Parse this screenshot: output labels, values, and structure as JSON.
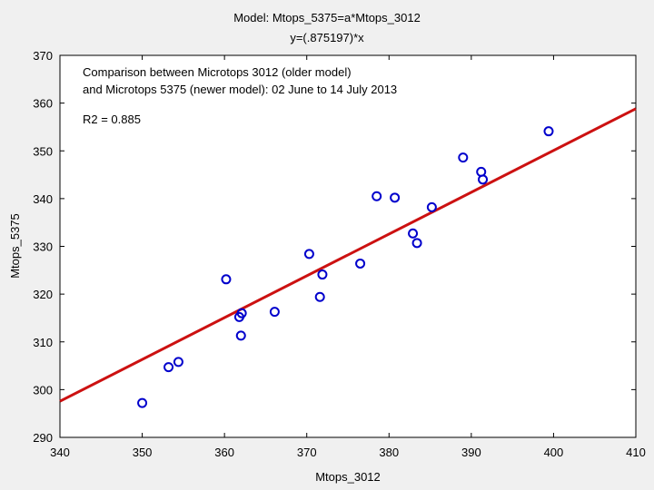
{
  "chart_data": {
    "type": "scatter",
    "title": "Model: Mtops_5375=a*Mtops_3012",
    "subtitle": "y=(.875197)*x",
    "xlabel": "Mtops_3012",
    "ylabel": "Mtops_5375",
    "xlim": [
      340,
      410
    ],
    "ylim": [
      290,
      370
    ],
    "xticks": [
      "340",
      "350",
      "360",
      "370",
      "380",
      "390",
      "400",
      "410"
    ],
    "yticks": [
      "290",
      "300",
      "310",
      "320",
      "330",
      "340",
      "350",
      "360",
      "370"
    ],
    "grid": false,
    "annotation_lines": [
      "Comparison between Microtops 3012 (older model)",
      "and Microtops 5375 (newer model): 02 June to 14 July 2013"
    ],
    "r2_label": "R2 = 0.885",
    "slope": 0.875197,
    "points": [
      {
        "x": 350.0,
        "y": 297.2
      },
      {
        "x": 353.2,
        "y": 304.7
      },
      {
        "x": 354.4,
        "y": 305.8
      },
      {
        "x": 360.2,
        "y": 323.1
      },
      {
        "x": 361.8,
        "y": 315.2
      },
      {
        "x": 362.1,
        "y": 316.0
      },
      {
        "x": 362.0,
        "y": 311.3
      },
      {
        "x": 366.1,
        "y": 316.3
      },
      {
        "x": 370.3,
        "y": 328.4
      },
      {
        "x": 371.6,
        "y": 319.4
      },
      {
        "x": 371.9,
        "y": 324.1
      },
      {
        "x": 376.5,
        "y": 326.4
      },
      {
        "x": 378.5,
        "y": 340.5
      },
      {
        "x": 380.7,
        "y": 340.2
      },
      {
        "x": 382.9,
        "y": 332.7
      },
      {
        "x": 383.4,
        "y": 330.7
      },
      {
        "x": 385.2,
        "y": 338.2
      },
      {
        "x": 389.0,
        "y": 348.6
      },
      {
        "x": 391.2,
        "y": 345.6
      },
      {
        "x": 391.4,
        "y": 344.0
      },
      {
        "x": 399.4,
        "y": 354.1
      }
    ],
    "colors": {
      "points": "#0000cc",
      "fit_line": "#cc1111",
      "plot_bg": "#ffffff",
      "page_bg": "#f0f0f0"
    }
  }
}
